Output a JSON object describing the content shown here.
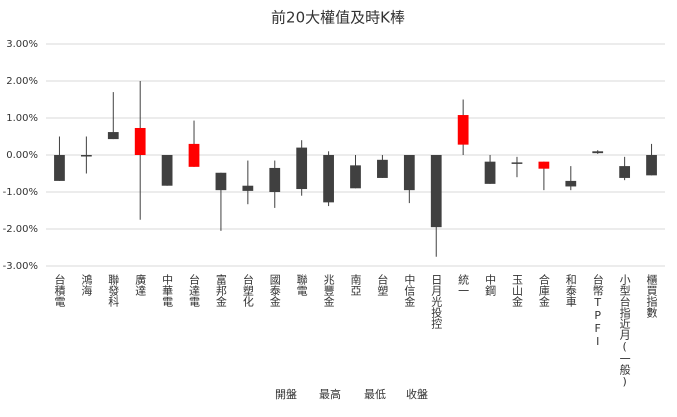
{
  "chart_data": {
    "type": "candlestick",
    "title": "前20大權值及時K棒",
    "categories": [
      "台積電",
      "鴻海",
      "聯發科",
      "廣達",
      "中華電",
      "台達電",
      "富邦金",
      "台塑化",
      "國泰金",
      "聯電",
      "兆豐金",
      "南亞",
      "台塑",
      "中信金",
      "日月光投控",
      "統一",
      "中鋼",
      "玉山金",
      "合庫金",
      "和泰車",
      "台幣TPFI",
      "小型台指近月(一般)",
      "櫃買指數"
    ],
    "series": [
      {
        "name": "開盤",
        "values": [
          0,
          0,
          0.62,
          0,
          0,
          -0.32,
          -0.48,
          -0.83,
          -0.35,
          0.2,
          0,
          -0.28,
          -0.13,
          0,
          0,
          0.28,
          -0.18,
          -0.2,
          -0.37,
          -0.7,
          0.1,
          -0.3,
          0
        ]
      },
      {
        "name": "最高",
        "values": [
          0.5,
          0.5,
          1.7,
          2.0,
          0,
          0.93,
          -0.48,
          -0.15,
          -0.15,
          0.4,
          0.1,
          0,
          0,
          0,
          0,
          1.5,
          0,
          -0.05,
          -0.18,
          -0.3,
          0.13,
          -0.05,
          0.3
        ]
      },
      {
        "name": "最低",
        "values": [
          -0.7,
          -0.5,
          0.43,
          -1.75,
          -0.83,
          -0.32,
          -2.05,
          -1.33,
          -1.43,
          -1.1,
          -1.38,
          -0.9,
          -0.62,
          -1.3,
          -2.75,
          0,
          -0.78,
          -0.6,
          -0.95,
          -0.95,
          0.03,
          -0.68,
          -0.55
        ]
      },
      {
        "name": "收盤",
        "values": [
          -0.7,
          -0.03,
          0.43,
          0.73,
          -0.83,
          0.3,
          -0.95,
          -0.97,
          -1.0,
          -0.92,
          -1.28,
          -0.9,
          -0.62,
          -0.95,
          -1.95,
          1.08,
          -0.78,
          -0.23,
          -0.18,
          -0.85,
          0.05,
          -0.62,
          -0.55
        ]
      }
    ],
    "up_color": "#ff0000",
    "down_color": "#404040",
    "ylim": [
      -3,
      3
    ],
    "yticks": [
      {
        "value": -3,
        "label": "-3.00%"
      },
      {
        "value": -2,
        "label": "-2.00%"
      },
      {
        "value": -1,
        "label": "-1.00%"
      },
      {
        "value": 0,
        "label": "0.00%"
      },
      {
        "value": 1,
        "label": "1.00%"
      },
      {
        "value": 2,
        "label": "2.00%"
      },
      {
        "value": 3,
        "label": "3.00%"
      }
    ],
    "grid": true
  }
}
